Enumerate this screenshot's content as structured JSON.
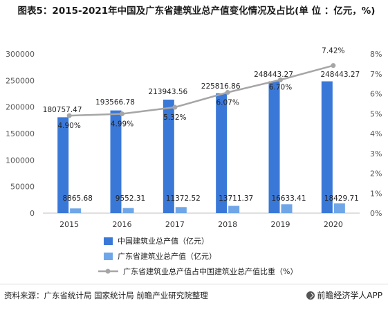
{
  "title": "图表5：2015-2021年中国及广东省建筑业总产值变化情况及占比(单 位 ：亿元，%)",
  "colors": {
    "china": "#3a78d8",
    "guangdong": "#6fa6e8",
    "line": "#a6a6a6"
  },
  "chart_data": {
    "type": "bar",
    "title": "图表5：2015-2021年中国及广东省建筑业总产值变化情况及占比(单 位 ：亿元，%)",
    "categories": [
      "2015",
      "2016",
      "2017",
      "2018",
      "2019",
      "2020"
    ],
    "ylim_left": [
      0,
      300000
    ],
    "yticks_left": [
      "0",
      "50000",
      "100000",
      "150000",
      "200000",
      "250000",
      "300000"
    ],
    "ylim_right": [
      0,
      8
    ],
    "yticks_right": [
      "0%",
      "1%",
      "2%",
      "3%",
      "4%",
      "5%",
      "6%",
      "7%",
      "8%"
    ],
    "grid": false,
    "legend_position": "bottom",
    "series": [
      {
        "name": "中国建筑业总产值（亿元）",
        "type": "bar",
        "axis": "left",
        "values": [
          180757.47,
          193566.78,
          213943.56,
          225816.86,
          248443.27,
          248443.27
        ],
        "labels": [
          "180757.47",
          "193566.78",
          "213943.56",
          "225816.86",
          "248443.27",
          "248443.27"
        ]
      },
      {
        "name": "广东省建筑业总产值（亿元）",
        "type": "bar",
        "axis": "left",
        "values": [
          8865.68,
          9552.31,
          11372.52,
          13711.37,
          16633.41,
          18429.71
        ],
        "labels": [
          "8865.68",
          "9552.31",
          "11372.52",
          "13711.37",
          "16633.41",
          "18429.71"
        ]
      },
      {
        "name": "广东省建筑业总产值占中国建筑业总产值比重（%）",
        "type": "line",
        "axis": "right",
        "values": [
          4.9,
          4.99,
          5.32,
          6.07,
          6.7,
          7.42
        ],
        "labels": [
          "4.90%",
          "4.99%",
          "5.32%",
          "6.07%",
          "6.70%",
          "7.42%"
        ]
      }
    ]
  },
  "footer": {
    "source": "资料来源：广东省统计局 国家统计局 前瞻产业研究院整理",
    "brand": "前瞻经济学人APP"
  }
}
